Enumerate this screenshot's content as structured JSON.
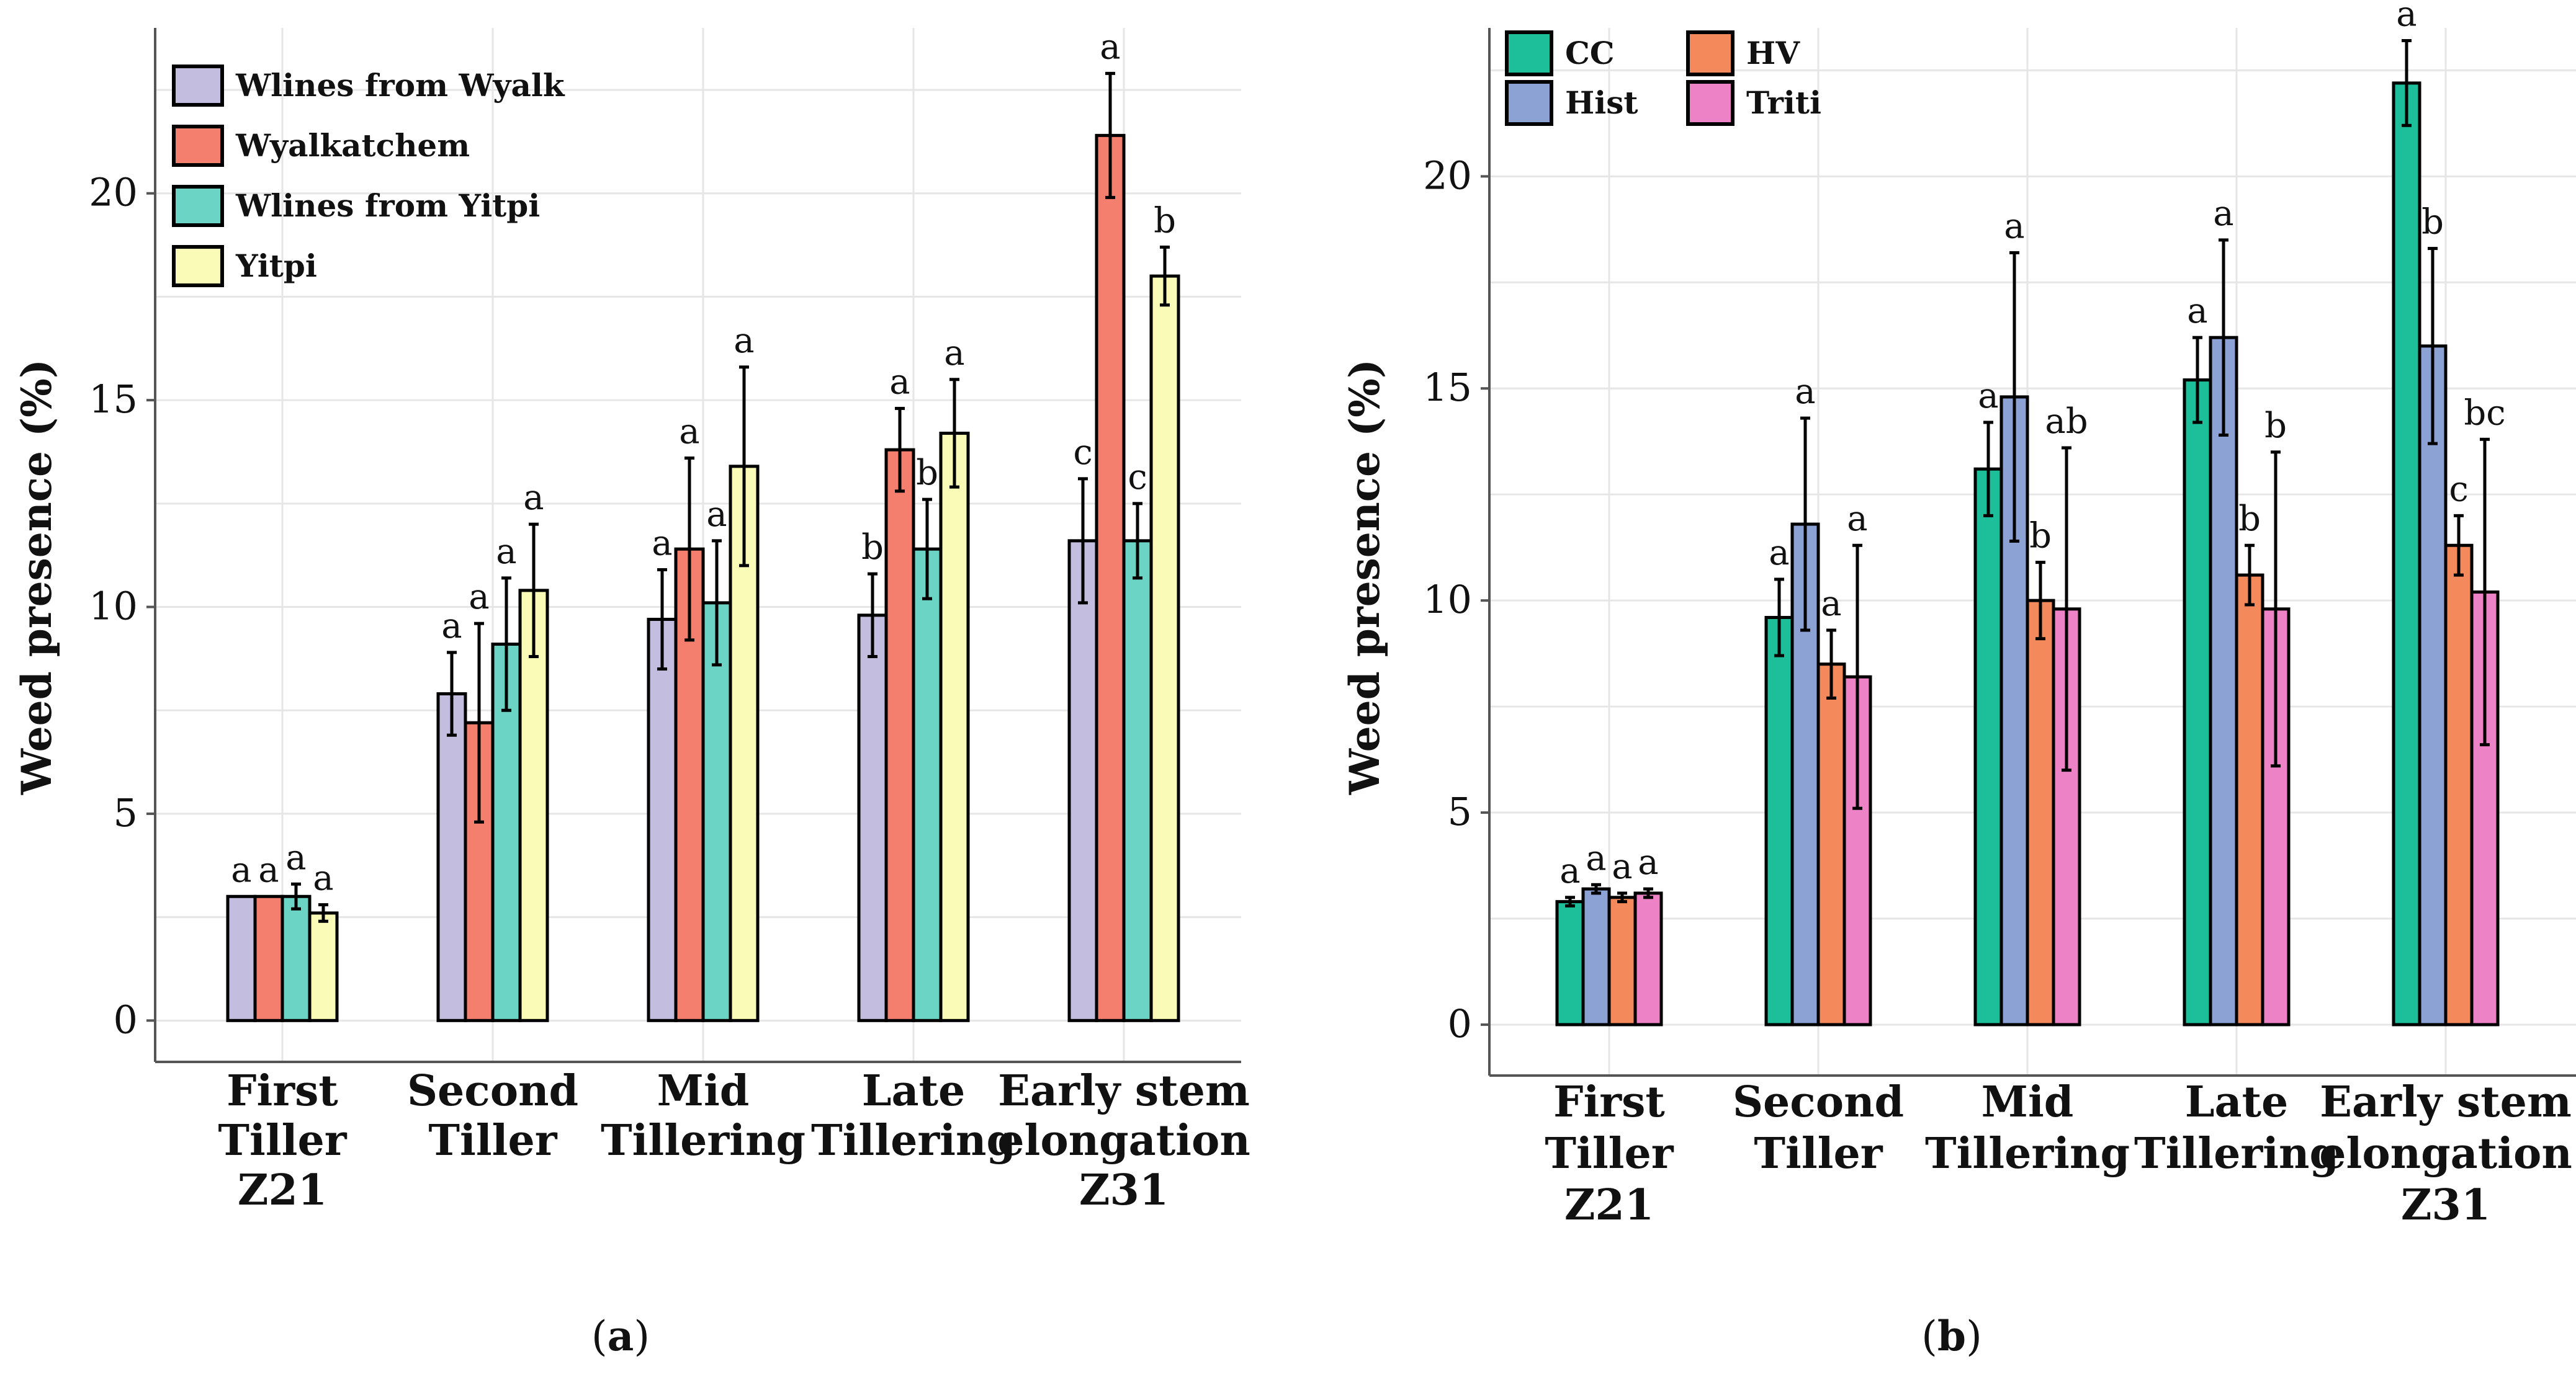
{
  "chart_data": [
    {
      "type": "bar",
      "panel_label": "a",
      "ylabel": "Weed presence (%)",
      "ylim": [
        -1,
        24
      ],
      "yticks": [
        0,
        5,
        10,
        15,
        20
      ],
      "grid": true,
      "legend_position": "top-left",
      "categories": [
        [
          "First",
          "Tiller",
          "Z21"
        ],
        [
          "Second",
          "Tiller"
        ],
        [
          "Mid",
          "Tillering"
        ],
        [
          "Late",
          "Tillering"
        ],
        [
          "Early stem",
          "elongation",
          "Z31"
        ]
      ],
      "series": [
        {
          "name": "Wlines from Wyalk",
          "color": "#C3BDDF",
          "values": [
            3.0,
            7.9,
            9.7,
            9.8,
            11.6
          ],
          "err": [
            0,
            1.0,
            1.2,
            1.0,
            1.5
          ],
          "letters": [
            "a",
            "a",
            "a",
            "b",
            "c"
          ]
        },
        {
          "name": "Wyalkatchem",
          "color": "#F47F6E",
          "values": [
            3.0,
            7.2,
            11.4,
            13.8,
            21.4
          ],
          "err": [
            0,
            2.4,
            2.2,
            1.0,
            1.5
          ],
          "letters": [
            "a",
            "a",
            "a",
            "a",
            "a"
          ]
        },
        {
          "name": "Wlines from Yitpi",
          "color": "#6CD4C4",
          "values": [
            3.0,
            9.1,
            10.1,
            11.4,
            11.6
          ],
          "err": [
            0.3,
            1.6,
            1.5,
            1.2,
            0.9
          ],
          "letters": [
            "a",
            "a",
            "a",
            "b",
            "c"
          ]
        },
        {
          "name": "Yitpi",
          "color": "#FBFBB8",
          "values": [
            2.6,
            10.4,
            13.4,
            14.2,
            18.0
          ],
          "err": [
            0.2,
            1.6,
            2.4,
            1.3,
            0.7
          ],
          "letters": [
            "a",
            "a",
            "a",
            "a",
            "b"
          ]
        }
      ]
    },
    {
      "type": "bar",
      "panel_label": "b",
      "ylabel": "Weed presence (%)",
      "ylim": [
        -1.2,
        23.5
      ],
      "yticks": [
        0,
        5,
        10,
        15,
        20
      ],
      "grid": true,
      "legend_position": "top-left",
      "categories": [
        [
          "First",
          "Tiller",
          "Z21"
        ],
        [
          "Second",
          "Tiller"
        ],
        [
          "Mid",
          "Tillering"
        ],
        [
          "Late",
          "Tillering"
        ],
        [
          "Early stem",
          "elongation",
          "Z31"
        ]
      ],
      "series": [
        {
          "name": "CC",
          "color": "#1DBF9A",
          "values": [
            2.9,
            9.6,
            13.1,
            15.2,
            22.2
          ],
          "err": [
            0.1,
            0.9,
            1.1,
            1.0,
            1.0
          ],
          "letters": [
            "a",
            "a",
            "a",
            "a",
            "a"
          ]
        },
        {
          "name": "Hist",
          "color": "#8CA2D4",
          "values": [
            3.2,
            11.8,
            14.8,
            16.2,
            16.0
          ],
          "err": [
            0.1,
            2.5,
            3.4,
            2.3,
            2.3
          ],
          "letters": [
            "a",
            "a",
            "a",
            "a",
            "b"
          ]
        },
        {
          "name": "HV",
          "color": "#F48A5C",
          "values": [
            3.0,
            8.5,
            10.0,
            10.6,
            11.3
          ],
          "err": [
            0.1,
            0.8,
            0.9,
            0.7,
            0.7
          ],
          "letters": [
            "a",
            "a",
            "b",
            "b",
            "c"
          ]
        },
        {
          "name": "Triti",
          "color": "#EE82C6",
          "values": [
            3.1,
            8.2,
            9.8,
            9.8,
            10.2
          ],
          "err": [
            0.1,
            3.1,
            3.8,
            3.7,
            3.6
          ],
          "letters": [
            "a",
            "a",
            "ab",
            "b",
            "bc"
          ]
        }
      ]
    }
  ]
}
